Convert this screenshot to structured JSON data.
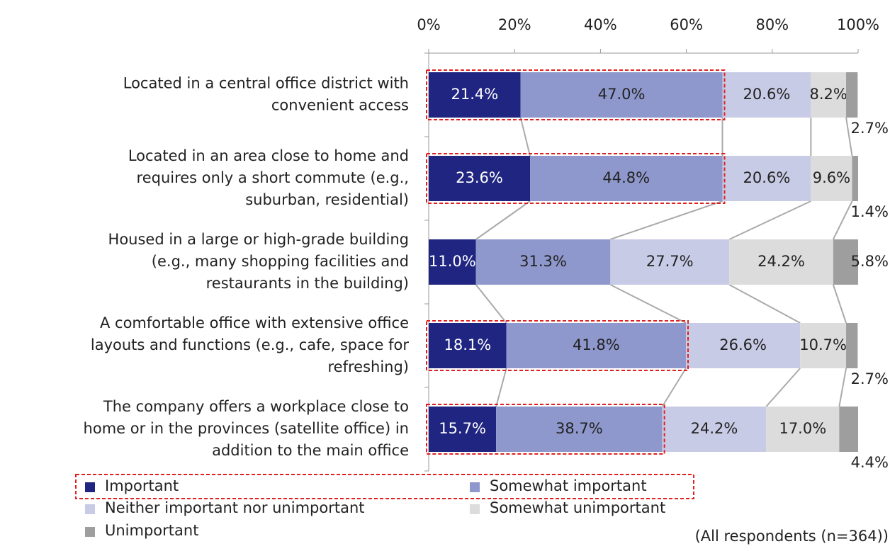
{
  "chart_data": {
    "type": "stacked-bar-horizontal",
    "categories": [
      "Located in a central office district with\nconvenient access",
      "Located in an area close to home and\nrequires only a short commute (e.g.,\nsuburban, residential)",
      "Housed in a large or high-grade building\n(e.g., many shopping facilities and\nrestaurants in the building)",
      "A comfortable office with extensive office\nlayouts and functions (e.g., cafe, space for\nrefreshing)",
      "The company offers a workplace close to\nhome or in the provinces (satellite office) in\naddition to the main office"
    ],
    "series": [
      {
        "name": "Important",
        "color": "#1f2580",
        "values": [
          21.4,
          23.6,
          11.0,
          18.1,
          15.7
        ],
        "value_labels": [
          "21.4%",
          "23.6%",
          "11.0%",
          "18.1%",
          "15.7%"
        ]
      },
      {
        "name": "Somewhat important",
        "color": "#8f98cc",
        "values": [
          47.0,
          44.8,
          31.3,
          41.8,
          38.7
        ],
        "value_labels": [
          "47.0%",
          "44.8%",
          "31.3%",
          "41.8%",
          "38.7%"
        ]
      },
      {
        "name": "Neither important nor unimportant",
        "color": "#c8cbe6",
        "values": [
          20.6,
          20.6,
          27.7,
          26.6,
          24.2
        ],
        "value_labels": [
          "20.6%",
          "20.6%",
          "27.7%",
          "26.6%",
          "24.2%"
        ]
      },
      {
        "name": "Somewhat unimportant",
        "color": "#dcdcdc",
        "values": [
          8.2,
          9.6,
          24.2,
          10.7,
          17.0
        ],
        "value_labels": [
          "8.2%",
          "9.6%",
          "24.2%",
          "10.7%",
          "17.0%"
        ]
      },
      {
        "name": "Unimportant",
        "color": "#9e9e9e",
        "values": [
          2.7,
          1.4,
          5.8,
          2.7,
          4.4
        ],
        "value_labels": [
          "2.7%",
          "1.4%",
          "5.8%",
          "2.7%",
          "4.4%"
        ]
      }
    ],
    "xlim": [
      0,
      100
    ],
    "xticks": [
      {
        "value": 0,
        "label": "0%"
      },
      {
        "value": 20,
        "label": "20%"
      },
      {
        "value": 40,
        "label": "40%"
      },
      {
        "value": 60,
        "label": "60%"
      },
      {
        "value": 80,
        "label": "80%"
      },
      {
        "value": 100,
        "label": "100%"
      }
    ],
    "highlight": [
      0,
      1,
      3,
      4
    ],
    "note": "(All respondents (n=364))"
  }
}
